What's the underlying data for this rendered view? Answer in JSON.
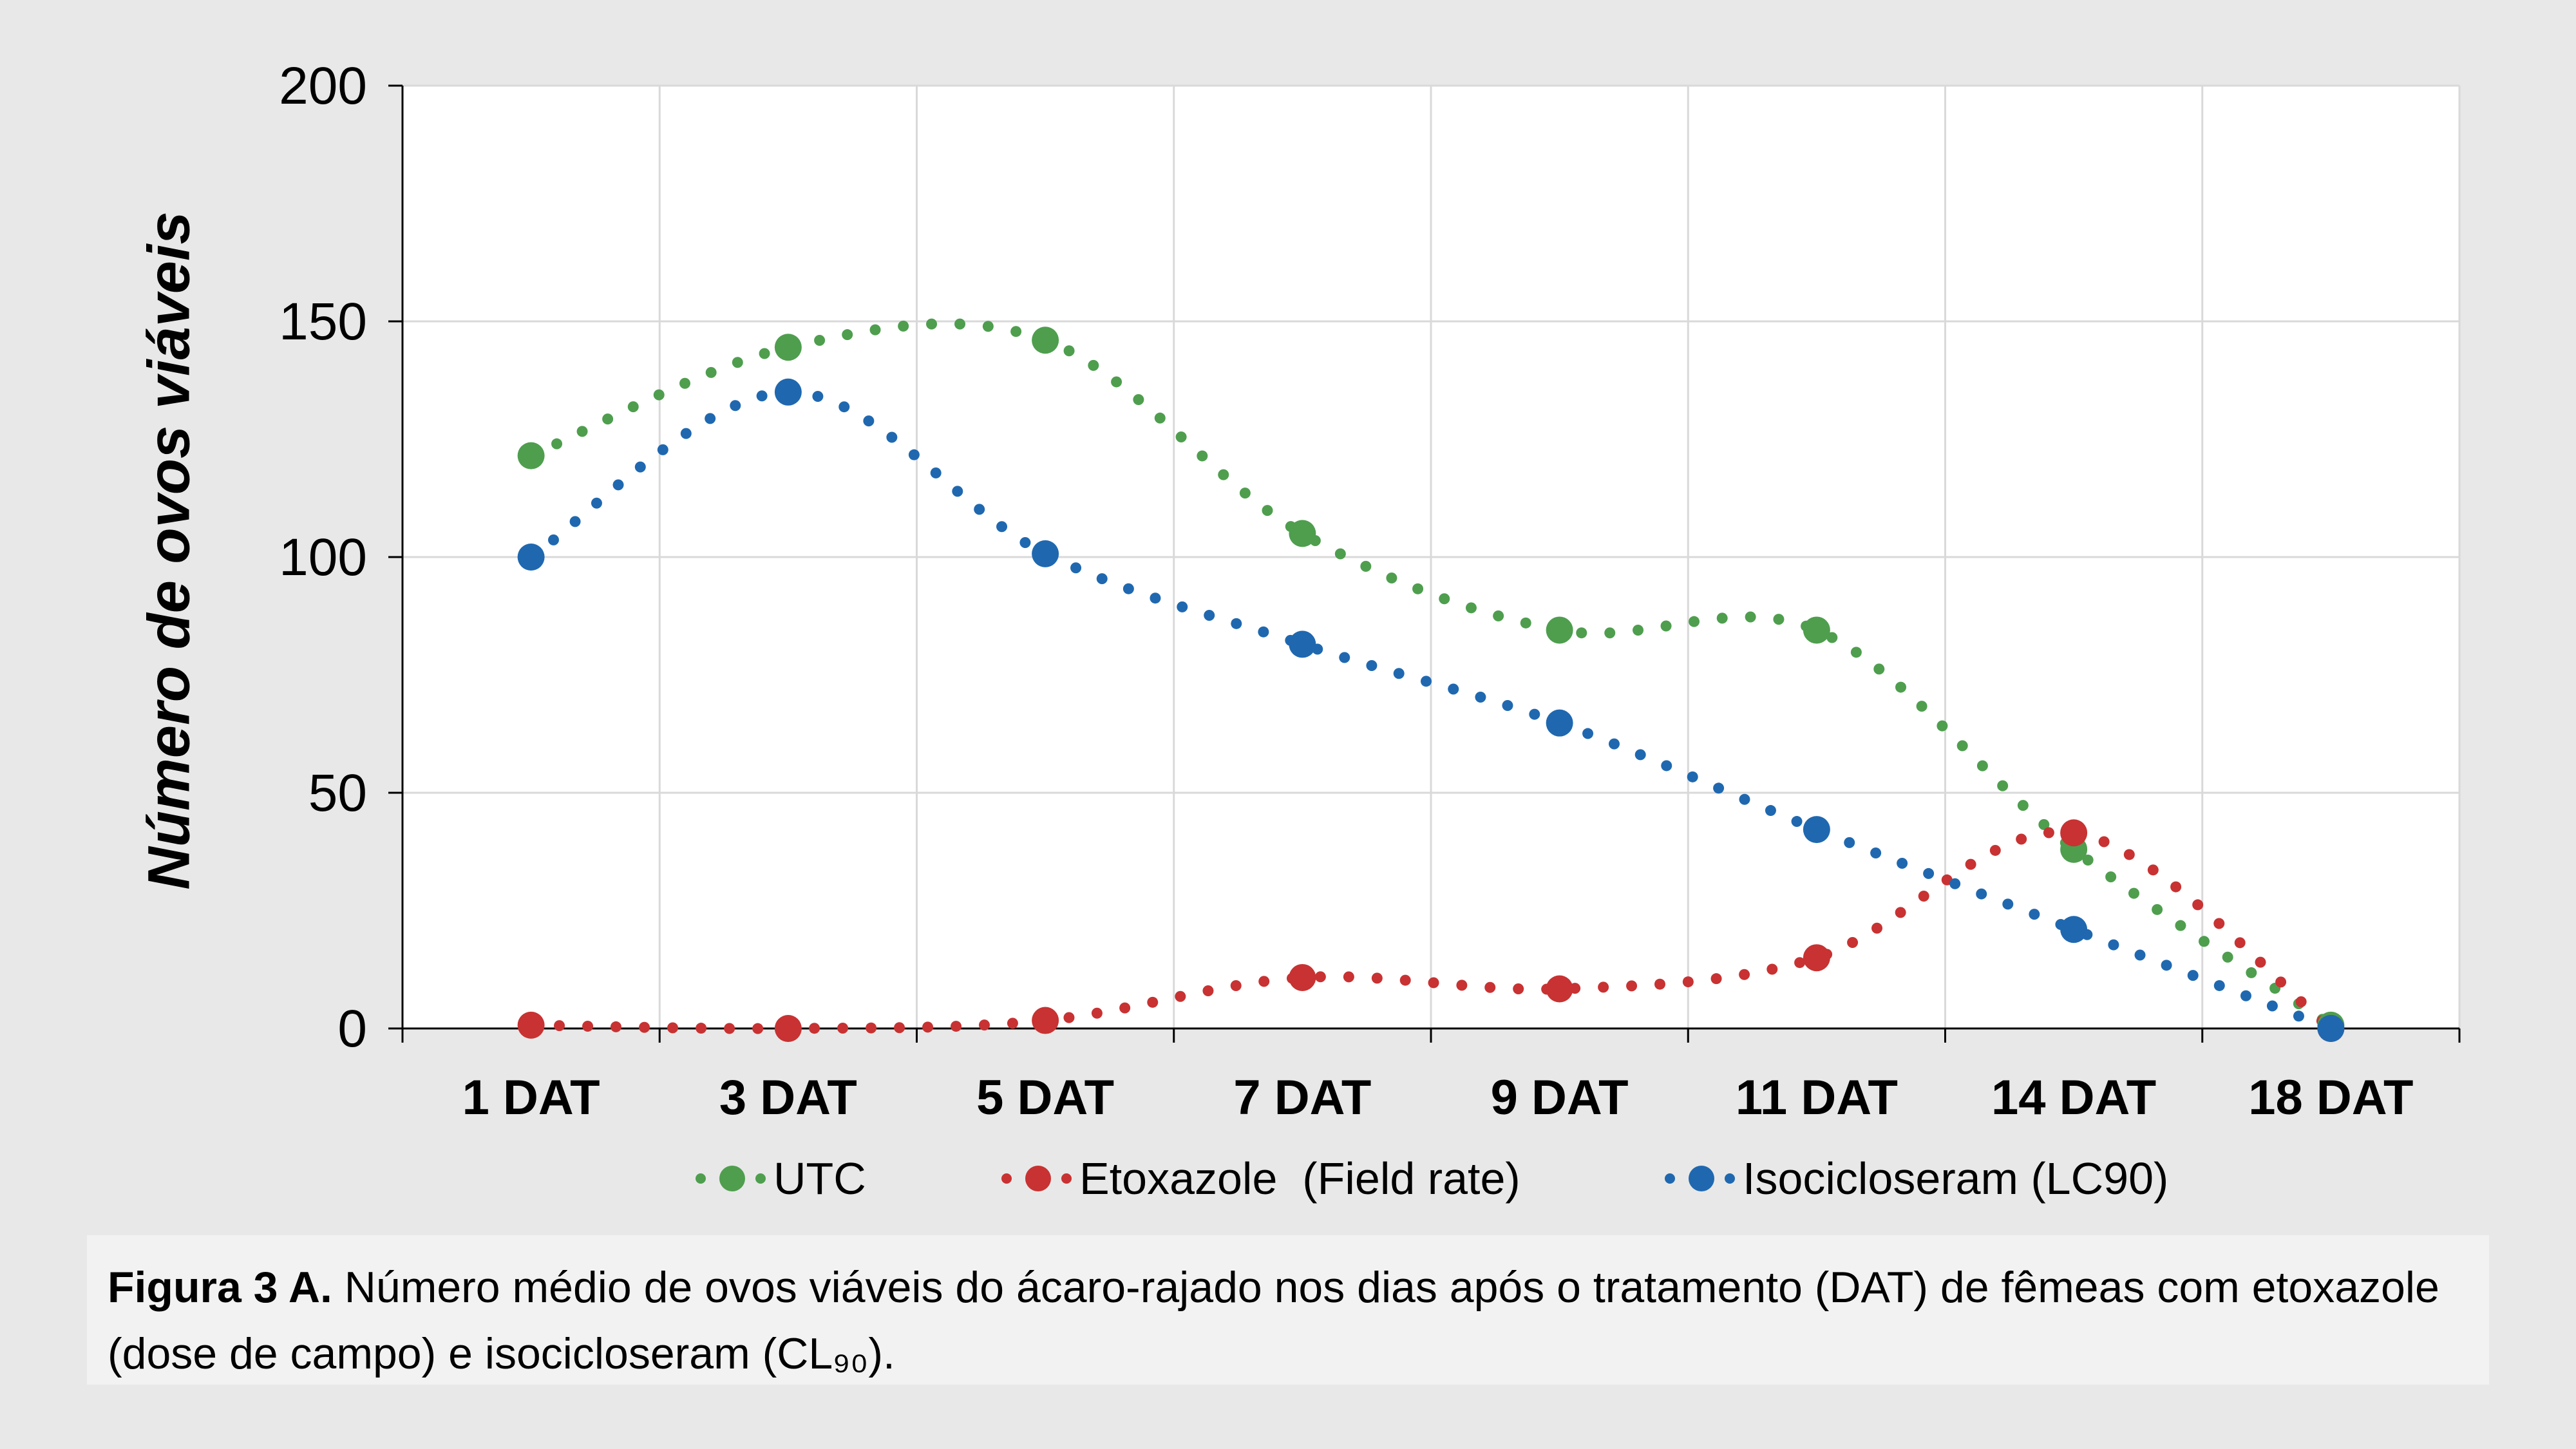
{
  "chart_data": {
    "type": "line",
    "title": "",
    "xlabel": "",
    "ylabel": "Número de ovos viáveis",
    "ylim": [
      0,
      200
    ],
    "yticks": [
      "0",
      "50",
      "100",
      "150",
      "200"
    ],
    "categories": [
      "1 DAT",
      "3 DAT",
      "5 DAT",
      "7 DAT",
      "9 DAT",
      "11 DAT",
      "14 DAT",
      "18 DAT"
    ],
    "grid": true,
    "legend_position": "bottom",
    "series": [
      {
        "name": "UTC",
        "color": "#4e9e4e",
        "values": [
          121.5,
          144.5,
          146,
          105,
          84.5,
          84.5,
          38,
          0.7
        ]
      },
      {
        "name": "Etoxazole  (Field rate)",
        "color": "#c83232",
        "values": [
          0.7,
          0,
          1.7,
          10.8,
          8.4,
          15,
          41.5,
          0
        ]
      },
      {
        "name": "Isocicloseram (LC90)",
        "color": "#1f68b0",
        "values": [
          100,
          135,
          100.7,
          81.5,
          64.8,
          42.2,
          21,
          0
        ]
      }
    ]
  },
  "caption": {
    "label": "Figura 3 A.",
    "text": " Número médio de ovos viáveis do ácaro-rajado nos dias após o tratamento (DAT) de fêmeas com etoxazole (dose de campo) e isocicloseram (CL₉₀)."
  }
}
